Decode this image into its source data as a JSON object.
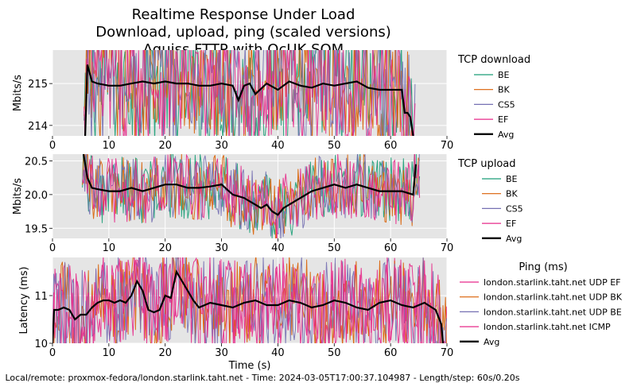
{
  "title_lines": [
    "Realtime Response Under Load",
    "Download, upload, ping (scaled versions)",
    "Aquiss FTTP with OcUK SQM"
  ],
  "footer": "Local/remote: proxmox-fedora/london.starlink.taht.net - Time: 2024-03-05T17:00:37.104987 - Length/step: 60s/0.20s",
  "colors": {
    "BE": "#1b9e77",
    "BK": "#d95f02",
    "CS5": "#7570b3",
    "EF": "#e7298a",
    "ICMP": "#e7298a",
    "Avg": "#000000",
    "plot_bg": "#e5e5e5",
    "grid": "#ffffff"
  },
  "chart_data": [
    {
      "type": "line",
      "name": "download",
      "ylabel": "Mbits/s",
      "xlabel": "",
      "xlim": [
        0,
        70
      ],
      "ylim": [
        213.75,
        215.8
      ],
      "xticks": [
        0,
        10,
        20,
        30,
        40,
        50,
        60,
        70
      ],
      "yticks": [
        214,
        215
      ],
      "grid": true,
      "legend": {
        "title": "TCP download",
        "placement": "right",
        "entries": [
          "BE",
          "BK",
          "CS5",
          "EF",
          "Avg"
        ]
      },
      "noise": {
        "start": 5.6,
        "end": 64.5,
        "spread": 1.6
      },
      "series": [
        {
          "name": "Avg",
          "x": [
            5.8,
            6.2,
            7,
            8,
            10,
            12,
            14,
            16,
            18,
            20,
            22,
            24,
            26,
            28,
            30,
            32,
            33,
            34,
            35,
            36,
            38,
            40,
            42,
            44,
            46,
            48,
            50,
            52,
            54,
            56,
            58,
            60,
            62,
            62.5,
            63,
            63.5,
            64
          ],
          "y": [
            213.75,
            215.45,
            215.05,
            215.0,
            214.95,
            214.95,
            215.0,
            215.05,
            215.0,
            215.05,
            215.0,
            215.0,
            214.95,
            214.95,
            215.0,
            214.95,
            214.6,
            214.95,
            215.0,
            214.75,
            215.0,
            214.85,
            215.05,
            214.95,
            214.9,
            215.0,
            214.95,
            215.0,
            215.05,
            214.9,
            214.85,
            214.85,
            214.85,
            214.3,
            214.3,
            214.2,
            213.75
          ]
        }
      ]
    },
    {
      "type": "line",
      "name": "upload",
      "ylabel": "Mbits/s",
      "xlabel": "",
      "xlim": [
        0,
        70
      ],
      "ylim": [
        19.35,
        20.6
      ],
      "xticks": [
        0,
        10,
        20,
        30,
        40,
        50,
        60,
        70
      ],
      "yticks": [
        19.5,
        20.0,
        20.5
      ],
      "grid": true,
      "legend": {
        "title": "TCP upload",
        "placement": "right",
        "entries": [
          "BE",
          "BK",
          "CS5",
          "EF",
          "Avg"
        ]
      },
      "noise": {
        "start": 5.3,
        "end": 65.3,
        "spread": 0.9
      },
      "series": [
        {
          "name": "Avg",
          "x": [
            5.5,
            6.2,
            7,
            8,
            10,
            12,
            14,
            16,
            18,
            20,
            22,
            24,
            26,
            28,
            30,
            32,
            34,
            36,
            37,
            38,
            39,
            40,
            41,
            42,
            44,
            46,
            48,
            50,
            52,
            54,
            56,
            58,
            60,
            62,
            64,
            64.5
          ],
          "y": [
            20.6,
            20.25,
            20.1,
            20.08,
            20.05,
            20.05,
            20.1,
            20.05,
            20.1,
            20.15,
            20.15,
            20.1,
            20.1,
            20.12,
            20.15,
            20.0,
            19.95,
            19.85,
            19.8,
            19.85,
            19.75,
            19.7,
            19.8,
            19.85,
            19.95,
            20.05,
            20.1,
            20.15,
            20.1,
            20.15,
            20.1,
            20.05,
            20.05,
            20.05,
            20.0,
            20.45
          ]
        }
      ]
    },
    {
      "type": "line",
      "name": "ping",
      "ylabel": "Latency (ms)",
      "xlabel": "Time (s)",
      "xlim": [
        0,
        70
      ],
      "ylim": [
        10,
        11.8
      ],
      "xticks": [
        0,
        10,
        20,
        30,
        40,
        50,
        60,
        70
      ],
      "yticks": [
        10,
        11
      ],
      "grid": true,
      "legend": {
        "title": "Ping (ms)",
        "placement": "right",
        "entries": [
          "london.starlink.taht.net UDP EF",
          "london.starlink.taht.net UDP BK",
          "london.starlink.taht.net UDP BE",
          "london.starlink.taht.net ICMP",
          "Avg"
        ],
        "entry_colors": [
          "EF",
          "BK",
          "CS5",
          "ICMP",
          "Avg"
        ]
      },
      "noise": {
        "start": 0,
        "end": 70,
        "spread": 1.2
      },
      "series": [
        {
          "name": "Avg",
          "x": [
            0,
            0.3,
            1,
            2,
            3,
            4,
            5,
            6,
            7,
            8,
            9,
            10,
            11,
            12,
            13,
            14,
            15,
            16,
            17,
            18,
            19,
            20,
            21,
            22,
            23,
            24,
            25,
            26,
            27,
            28,
            30,
            32,
            34,
            36,
            38,
            40,
            42,
            44,
            46,
            48,
            50,
            52,
            54,
            56,
            58,
            60,
            62,
            64,
            66,
            68,
            69,
            69.3
          ],
          "y": [
            10,
            10.7,
            10.7,
            10.75,
            10.7,
            10.5,
            10.6,
            10.6,
            10.75,
            10.85,
            10.9,
            10.9,
            10.85,
            10.9,
            10.85,
            11.0,
            11.3,
            11.1,
            10.7,
            10.65,
            10.7,
            11.0,
            10.95,
            11.5,
            11.3,
            11.1,
            10.9,
            10.75,
            10.8,
            10.85,
            10.8,
            10.75,
            10.85,
            10.9,
            10.8,
            10.8,
            10.9,
            10.85,
            10.75,
            10.8,
            10.9,
            10.85,
            10.75,
            10.7,
            10.85,
            10.9,
            10.8,
            10.75,
            10.85,
            10.7,
            10.4,
            10
          ]
        }
      ]
    }
  ]
}
